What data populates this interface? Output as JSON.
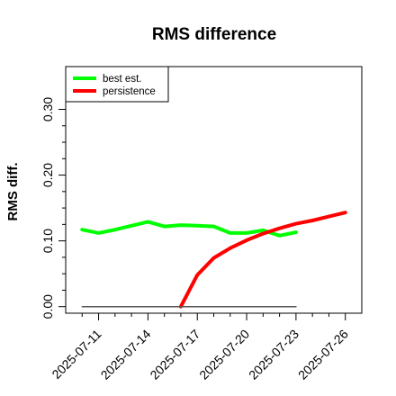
{
  "chart_data": {
    "type": "line",
    "title": "RMS difference",
    "xlabel": "",
    "ylabel": "RMS diff.",
    "x": [
      "2025-07-10",
      "2025-07-11",
      "2025-07-12",
      "2025-07-13",
      "2025-07-14",
      "2025-07-15",
      "2025-07-16",
      "2025-07-17",
      "2025-07-18",
      "2025-07-19",
      "2025-07-20",
      "2025-07-21",
      "2025-07-22",
      "2025-07-23",
      "2025-07-24",
      "2025-07-25",
      "2025-07-26"
    ],
    "x_ticks": [
      "2025-07-11",
      "2025-07-14",
      "2025-07-17",
      "2025-07-20",
      "2025-07-23",
      "2025-07-26"
    ],
    "xlim": [
      "2025-07-09",
      "2025-07-27"
    ],
    "y_ticks": [
      0.0,
      0.1,
      0.2,
      0.3
    ],
    "y_tick_labels": [
      "0.00",
      "0.10",
      "0.20",
      "0.30"
    ],
    "ylim": [
      -0.01,
      0.365
    ],
    "grid": false,
    "legend_position": "top-left",
    "series": [
      {
        "name": "best est.",
        "color": "#00ff00",
        "values": [
          0.117,
          0.112,
          0.117,
          0.123,
          0.129,
          0.122,
          0.124,
          0.123,
          0.122,
          0.112,
          0.112,
          0.116,
          0.108,
          0.113,
          null,
          null,
          null
        ]
      },
      {
        "name": "persistence",
        "color": "#ff0000",
        "values": [
          null,
          null,
          null,
          null,
          null,
          null,
          0.0,
          0.048,
          0.074,
          0.089,
          0.101,
          0.111,
          0.119,
          0.126,
          0.131,
          0.137,
          0.143
        ]
      },
      {
        "name": "",
        "color": "#555555",
        "values": [
          0.0,
          0.0,
          0.0,
          0.0,
          0.0,
          0.0,
          0.0,
          0.0,
          0.0,
          0.0,
          0.0,
          0.0,
          0.0,
          0.0,
          null,
          null,
          null
        ]
      }
    ]
  }
}
